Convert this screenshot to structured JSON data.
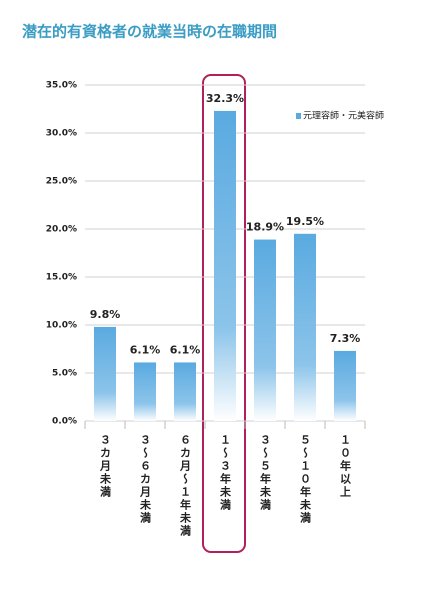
{
  "chart_data": {
    "type": "bar",
    "title": "潜在的有資格者の就業当時の在職期間",
    "categories": [
      "３カ月未満",
      "３〜６カ月未満",
      "６カ月〜１年未満",
      "１〜３年未満",
      "３〜５年未満",
      "５〜１０年未満",
      "１０年以上"
    ],
    "series": [
      {
        "name": "元理容師・元美容師",
        "color": "#5aaae0",
        "values": [
          9.8,
          6.1,
          6.1,
          32.3,
          18.9,
          19.5,
          7.3
        ],
        "value_labels": [
          "9.8%",
          "6.1%",
          "6.1%",
          "32.3%",
          "18.9%",
          "19.5%",
          "7.3%"
        ]
      }
    ],
    "ylim": [
      0,
      35
    ],
    "yticks": [
      {
        "value": 0,
        "label": "0.0%"
      },
      {
        "value": 5,
        "label": "5.0%"
      },
      {
        "value": 10,
        "label": "10.0%"
      },
      {
        "value": 15,
        "label": "15.0%"
      },
      {
        "value": 20,
        "label": "20.0%"
      },
      {
        "value": 25,
        "label": "25.0%"
      },
      {
        "value": 30,
        "label": "30.0%"
      },
      {
        "value": 35,
        "label": "35.0%"
      }
    ],
    "grid": true
  }
}
